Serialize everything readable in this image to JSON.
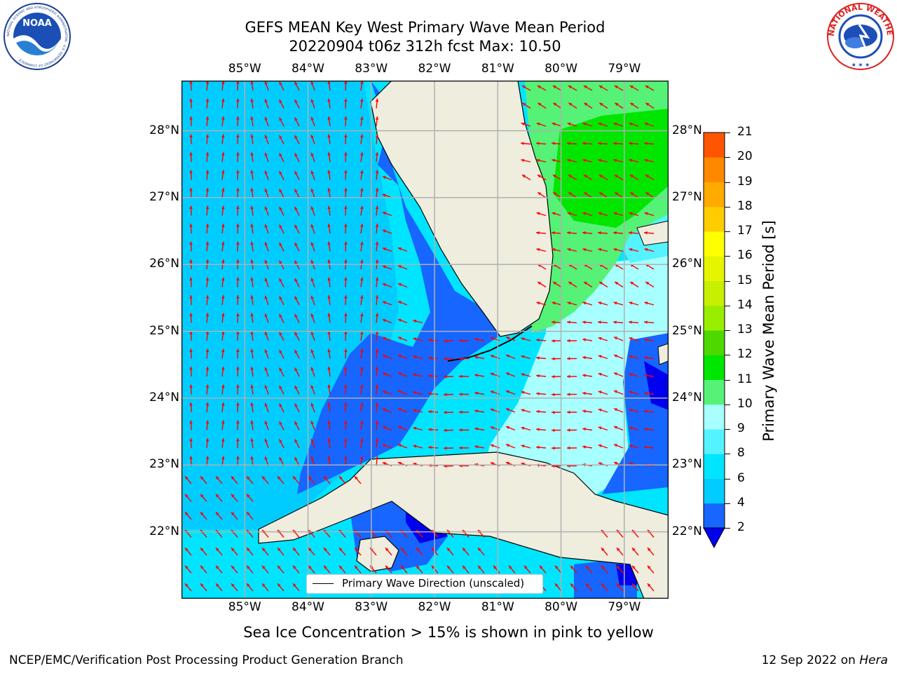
{
  "title": {
    "line1": "GEFS MEAN Key West Primary Wave Mean Period",
    "line2": "20220904 t06z 312h fcst   Max: 10.50"
  },
  "logos": {
    "noaa": {
      "text": "NOAA",
      "ring_text": "NATIONAL OCEANIC AND ATMOSPHERIC ADMINISTRATION · U.S. DEPARTMENT OF COMMERCE",
      "icon": "noaa-logo"
    },
    "nws": {
      "text": "NATIONAL WEATHER SERVICE",
      "icon": "nws-logo"
    }
  },
  "map": {
    "lon_ticks": [
      "85°W",
      "84°W",
      "83°W",
      "82°W",
      "81°W",
      "80°W",
      "79°W"
    ],
    "lat_ticks": [
      "28°N",
      "27°N",
      "26°N",
      "25°N",
      "24°N",
      "23°N",
      "22°N"
    ],
    "lon_range": [
      -86.0,
      -78.3
    ],
    "lat_range": [
      21.0,
      28.75
    ],
    "grid": true,
    "vector_color": "#ff0000",
    "land_color": "#eeedde"
  },
  "legend": {
    "label": "Primary Wave Direction (unscaled)",
    "placement": "bottom-center"
  },
  "colorbar": {
    "label": "Primary Wave Mean Period [s]",
    "ticks": [
      "2",
      "4",
      "6",
      "8",
      "9",
      "10",
      "11",
      "12",
      "13",
      "14",
      "15",
      "16",
      "17",
      "18",
      "19",
      "20",
      "21"
    ],
    "colors": [
      "#1666ff",
      "#00ccff",
      "#00e5ff",
      "#55f3ff",
      "#a8ffff",
      "#55f277",
      "#00e600",
      "#4fd800",
      "#99ee00",
      "#c6f000",
      "#e5f500",
      "#ffff00",
      "#ffcc00",
      "#ffaa00",
      "#ff8800",
      "#ff5500",
      "#ff2200",
      "#ff0000"
    ],
    "extend_color": "#0000ee"
  },
  "caption": "Sea Ice Concentration > 15% is shown in pink to yellow",
  "footer": {
    "left": "NCEP/EMC/Verification Post Processing Product Generation Branch",
    "right_prefix": "12 Sep 2022 on ",
    "right_host": "Hera"
  }
}
